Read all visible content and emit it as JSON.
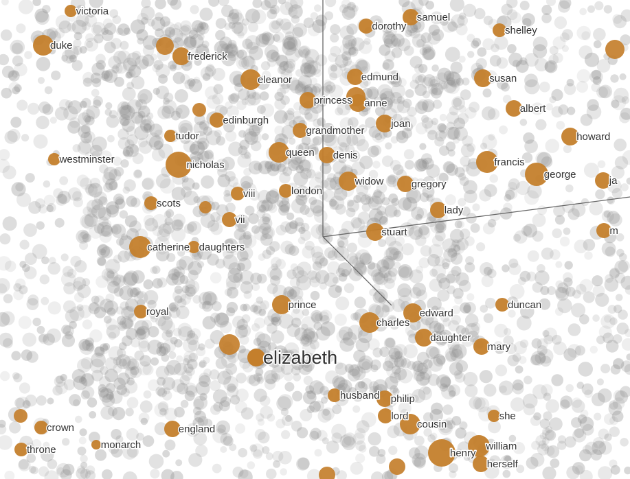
{
  "colors": {
    "background": "#ffffff",
    "highlight_point": "#c47f2c",
    "background_point": "#8a8a8a",
    "axis_line": "#666666",
    "label_text": "#333333"
  },
  "labels": {
    "focus": "elizabeth",
    "neighbors": [
      "victoria",
      "samuel",
      "dorothy",
      "shelley",
      "duke",
      "frederick",
      "edmund",
      "eleanor",
      "susan",
      "princess",
      "anne",
      "albert",
      "edinburgh",
      "joan",
      "grandmother",
      "tudor",
      "howard",
      "westminster",
      "queen",
      "denis",
      "nicholas",
      "francis",
      "george",
      "ja",
      "widow",
      "gregory",
      "london",
      "viii",
      "scots",
      "lady",
      "vii",
      "m",
      "stuart",
      "catherine",
      "daughters",
      "prince",
      "duncan",
      "royal",
      "edward",
      "charles",
      "daughter",
      "mary",
      "husband",
      "philip",
      "she",
      "lord",
      "cousin",
      "crown",
      "england",
      "monarch",
      "throne",
      "william",
      "henry",
      "herself"
    ]
  }
}
